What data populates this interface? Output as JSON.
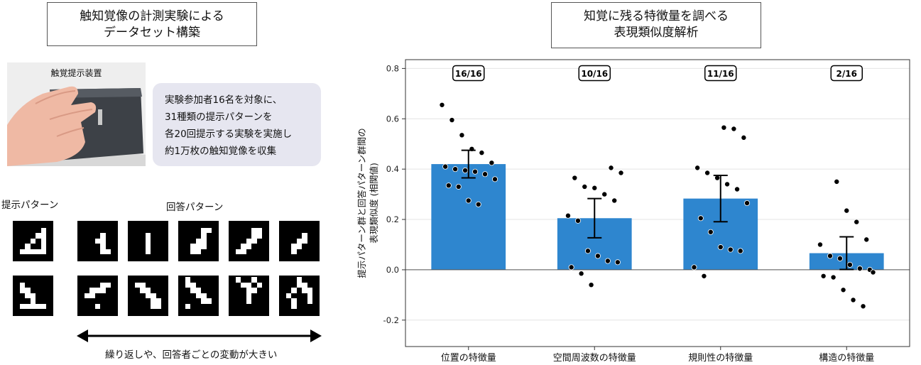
{
  "left": {
    "title_lines": [
      "触知覚像の計測実験による",
      "データセット構築"
    ],
    "device_label": "触覚提示装置",
    "info_lines": [
      "実験参加者16名を対象に、",
      "31種類の提示パターンを",
      "各20回提示する実験を実施し",
      "約1万枚の触知覚像を収集"
    ],
    "stimulus_label": "提示パターン",
    "response_label": "回答パターン",
    "arrow_caption": "繰り返しや、回答者ごとの変動が大きい"
  },
  "right": {
    "title_lines": [
      "知覚に残る特徴量を調べる",
      "表現類似度解析"
    ]
  },
  "chart_data": {
    "type": "bar",
    "categories": [
      "位置の特徴量",
      "空間周波数の特徴量",
      "規則性の特徴量",
      "構造の特徴量"
    ],
    "values": [
      0.42,
      0.205,
      0.283,
      0.066
    ],
    "errors": [
      0.055,
      0.078,
      0.092,
      0.065
    ],
    "annotations": [
      "16/16",
      "10/16",
      "11/16",
      "2/16"
    ],
    "points": [
      [
        0.655,
        0.595,
        0.535,
        0.48,
        0.465,
        0.425,
        0.41,
        0.4,
        0.395,
        0.39,
        0.38,
        0.36,
        0.335,
        0.33,
        0.275,
        0.26
      ],
      [
        0.405,
        0.385,
        0.365,
        0.33,
        0.325,
        0.3,
        0.275,
        0.215,
        0.195,
        0.075,
        0.055,
        0.035,
        0.03,
        0.01,
        -0.015,
        -0.06
      ],
      [
        0.565,
        0.56,
        0.525,
        0.405,
        0.385,
        0.365,
        0.34,
        0.32,
        0.265,
        0.205,
        0.15,
        0.09,
        0.08,
        0.075,
        0.01,
        -0.025
      ],
      [
        0.35,
        0.235,
        0.19,
        0.12,
        0.1,
        0.055,
        0.045,
        0.02,
        0.005,
        0.0,
        -0.025,
        -0.03,
        -0.08,
        -0.12,
        -0.145,
        -0.01
      ]
    ],
    "ylabel_lines": [
      "提示パターン群と回答パターン群間の",
      "表現類似度 (相関値)"
    ],
    "yticks": [
      -0.2,
      0.0,
      0.2,
      0.4,
      0.6,
      0.8
    ],
    "ylim": [
      -0.305,
      0.835
    ],
    "grid": true,
    "bar_color": "#2e86cf"
  },
  "patterns": {
    "stimulus": [
      [
        "0000000",
        "0000010",
        "0000110",
        "0001010",
        "0010010",
        "0111110",
        "0000000"
      ],
      [
        "0000000",
        "0100000",
        "0110000",
        "0011000",
        "0001000",
        "0111110",
        "0000000"
      ]
    ],
    "responses": [
      [
        [
          "0000000",
          "0000000",
          "0000100",
          "0001100",
          "0000100",
          "0000110",
          "0000000"
        ],
        [
          "0000000",
          "0000000",
          "0001000",
          "0001000",
          "0001000",
          "0001000",
          "0000000"
        ],
        [
          "0000000",
          "0000110",
          "0000100",
          "0001100",
          "0011100",
          "0011000",
          "0000000"
        ],
        [
          "0000000",
          "0000110",
          "0000110",
          "0001100",
          "0011000",
          "0110000",
          "0000000"
        ],
        [
          "0000000",
          "0000000",
          "0000100",
          "0001100",
          "0011000",
          "0010000",
          "0000000"
        ]
      ],
      [
        [
          "0000000",
          "0000110",
          "0011100",
          "0110000",
          "0000000",
          "0001000",
          "0000000"
        ],
        [
          "0000000",
          "0110000",
          "0011000",
          "0001100",
          "0000110",
          "0000110",
          "0000000"
        ],
        [
          "0100000",
          "0110000",
          "0011000",
          "0001100",
          "0000110",
          "0100000",
          "0000000"
        ],
        [
          "0100100",
          "0011010",
          "0001100",
          "0001000",
          "0001000",
          "0000000",
          "0000000"
        ],
        [
          "0001000",
          "0001100",
          "0010110",
          "0100010",
          "0010010",
          "0010000",
          "0000000"
        ]
      ]
    ]
  }
}
